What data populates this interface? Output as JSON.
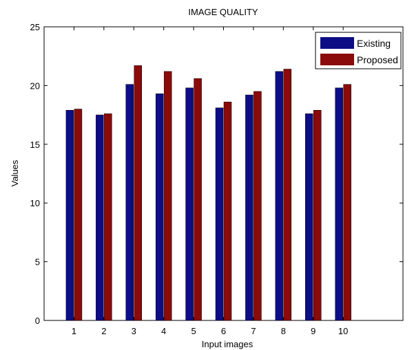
{
  "chart_data": {
    "type": "bar",
    "title": "IMAGE QUALITY",
    "xlabel": "Input images",
    "ylabel": "Values",
    "categories": [
      "1",
      "2",
      "3",
      "4",
      "5",
      "6",
      "7",
      "8",
      "9",
      "10"
    ],
    "series": [
      {
        "name": "Existing",
        "color": "#0d0d85",
        "values": [
          17.9,
          17.5,
          20.1,
          19.3,
          19.8,
          18.1,
          19.2,
          21.2,
          17.6,
          19.8
        ]
      },
      {
        "name": "Proposed",
        "color": "#8b0a0a",
        "values": [
          18.0,
          17.6,
          21.7,
          21.2,
          20.6,
          18.6,
          19.5,
          21.4,
          17.9,
          20.1
        ]
      }
    ],
    "ylim": [
      0,
      25
    ],
    "yticks": [
      0,
      5,
      10,
      15,
      20,
      25
    ],
    "xlim": [
      0,
      12
    ],
    "grid": false,
    "legend_position": "top-right"
  }
}
